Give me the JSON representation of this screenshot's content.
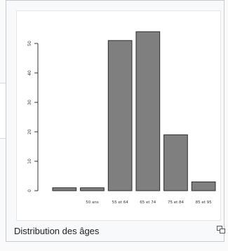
{
  "caption": "Distribution des âges",
  "icons": {
    "enlarge": "enlarge-icon"
  },
  "colors": {
    "bar_fill": "#7f7f7f",
    "bar_stroke": "#2b2b2b",
    "axis": "#333333"
  },
  "chart_data": {
    "type": "bar",
    "categories": [
      "",
      "50 ans",
      "55 et 64",
      "65 et 74",
      "75 et 84",
      "85 et 95"
    ],
    "values": [
      1,
      1,
      51,
      54,
      19,
      3
    ],
    "ylim": [
      0,
      50
    ],
    "yticks": [
      0,
      10,
      20,
      30,
      40,
      50
    ],
    "title": "",
    "xlabel": "",
    "ylabel": "",
    "grid": false,
    "legend": "none"
  }
}
